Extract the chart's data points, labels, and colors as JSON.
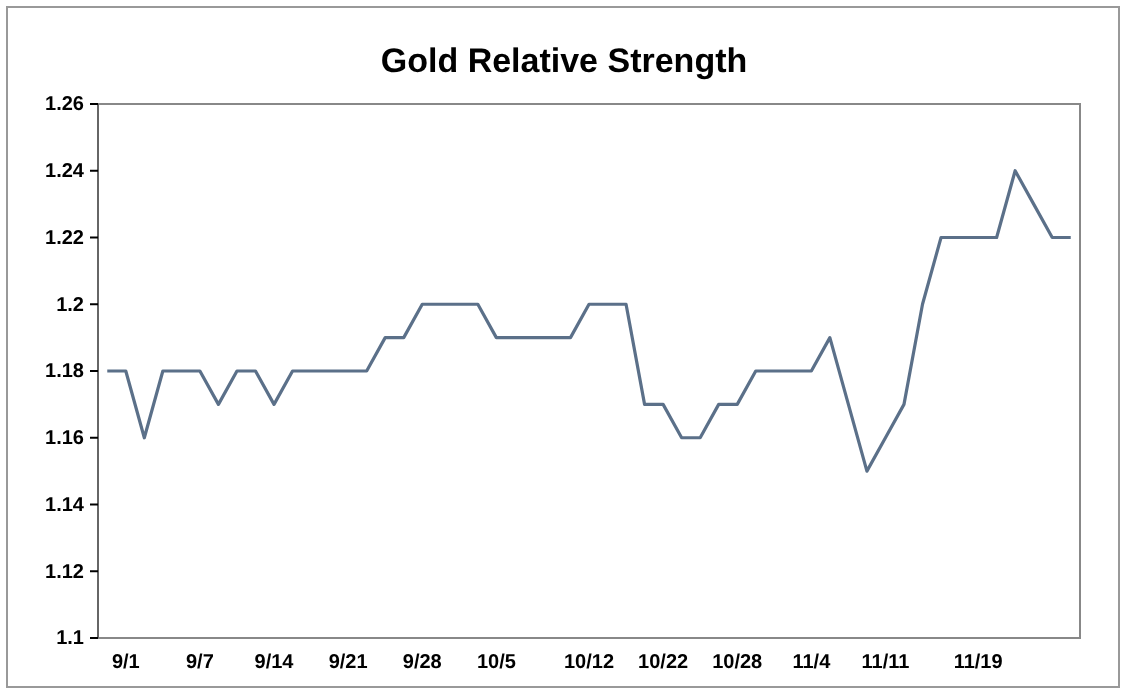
{
  "chart_data": {
    "type": "line",
    "title": "Gold Relative Strength",
    "categories": [
      null,
      "9/1",
      null,
      null,
      null,
      "9/7",
      null,
      null,
      null,
      "9/14",
      null,
      null,
      null,
      "9/21",
      null,
      null,
      null,
      "9/28",
      null,
      null,
      null,
      "10/5",
      null,
      null,
      null,
      null,
      "10/12",
      null,
      null,
      null,
      "10/22",
      null,
      null,
      null,
      "10/28",
      null,
      null,
      null,
      "11/4",
      null,
      null,
      null,
      "11/11",
      null,
      null,
      null,
      null,
      "11/19",
      null,
      null,
      null,
      null,
      null
    ],
    "series": [
      {
        "color": "#5b7089",
        "values": [
          1.18,
          1.18,
          1.16,
          1.18,
          1.18,
          1.18,
          1.17,
          1.18,
          1.18,
          1.17,
          1.18,
          1.18,
          1.18,
          1.18,
          1.18,
          1.19,
          1.19,
          1.2,
          1.2,
          1.2,
          1.2,
          1.19,
          1.19,
          1.19,
          1.19,
          1.19,
          1.2,
          1.2,
          1.2,
          1.17,
          1.17,
          1.16,
          1.16,
          1.17,
          1.17,
          1.18,
          1.18,
          1.18,
          1.18,
          1.19,
          1.17,
          1.15,
          1.16,
          1.17,
          1.2,
          1.22,
          1.22,
          1.22,
          1.22,
          1.24,
          1.23,
          1.22,
          1.22
        ]
      }
    ],
    "ylim": [
      1.1,
      1.26
    ],
    "yticks": [
      1.1,
      1.12,
      1.14,
      1.16,
      1.18,
      1.2,
      1.22,
      1.24,
      1.26
    ],
    "grid": false,
    "marker": "none",
    "line_style": "solid"
  }
}
